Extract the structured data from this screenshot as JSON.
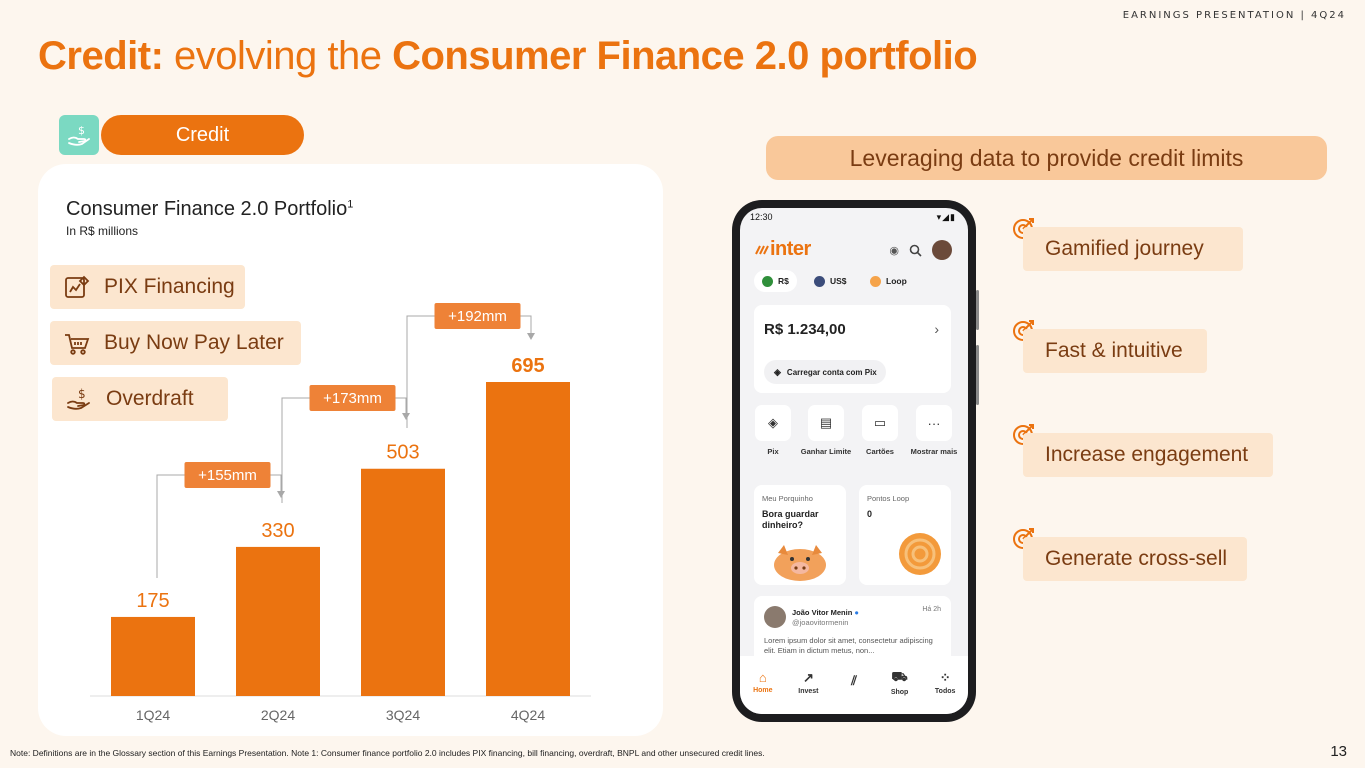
{
  "header_tag": "EARNINGS PRESENTATION | 4Q24",
  "title": {
    "part1": "Credit:",
    "part2": " evolving the ",
    "part3": "Consumer Finance 2.0 portfolio"
  },
  "credit_label": "Credit",
  "card": {
    "title": "Consumer Finance 2.0 Portfolio",
    "title_sup": "1",
    "subtitle": "In R$ millions"
  },
  "products": [
    {
      "label": "PIX Financing",
      "icon": "pix-financing-icon"
    },
    {
      "label": "Buy Now Pay Later",
      "icon": "shopping-cart-icon"
    },
    {
      "label": "Overdraft",
      "icon": "hand-money-icon"
    }
  ],
  "chart_data": {
    "type": "bar",
    "title": "Consumer Finance 2.0 Portfolio",
    "ylabel": "In R$ millions",
    "categories": [
      "1Q24",
      "2Q24",
      "3Q24",
      "4Q24"
    ],
    "values": [
      175,
      330,
      503,
      695
    ],
    "ylim": [
      0,
      695
    ],
    "increments": [
      "+155mm",
      "+173mm",
      "+192mm"
    ],
    "bar_color": "#EB7310",
    "label_color": "#EB7310"
  },
  "right": {
    "banner": "Leveraging data to provide credit limits",
    "benefits": [
      "Gamified journey",
      "Fast & intuitive",
      "Increase engagement",
      "Generate cross-sell"
    ]
  },
  "phone": {
    "time": "12:30",
    "status_icons": "▾◢▮",
    "logo": "inter",
    "currencies": [
      "R$",
      "US$",
      "Loop"
    ],
    "balance": "R$ 1.234,00",
    "pix_button": "Carregar conta com Pix",
    "quick_actions": [
      "Pix",
      "Ganhar Limite",
      "Cartões",
      "Mostrar mais"
    ],
    "piggy_title": "Meu Porquinho",
    "piggy_text": "Bora guardar dinheiro?",
    "loop_title": "Pontos Loop",
    "loop_value": "0",
    "post_name": "João Vitor Menin",
    "post_handle": "@joaovitormenin",
    "post_time": "Há 2h",
    "post_text": "Lorem ipsum dolor sit amet, consectetur adipiscing elit. Etiam in dictum metus, non...",
    "nav": [
      "Home",
      "Invest",
      "",
      "Shop",
      "Todos"
    ]
  },
  "note": "Note: Definitions are in the Glossary section of this Earnings Presentation. Note 1: Consumer finance portfolio 2.0 includes PIX financing, bill financing, overdraft, BNPL and other unsecured credit lines.",
  "page_number": "13",
  "colors": {
    "accent": "#EB7310",
    "teal": "#7BD9C2",
    "pill": "#F9C89A",
    "soft": "#FCE6CF",
    "text_brown": "#7A3C12"
  }
}
